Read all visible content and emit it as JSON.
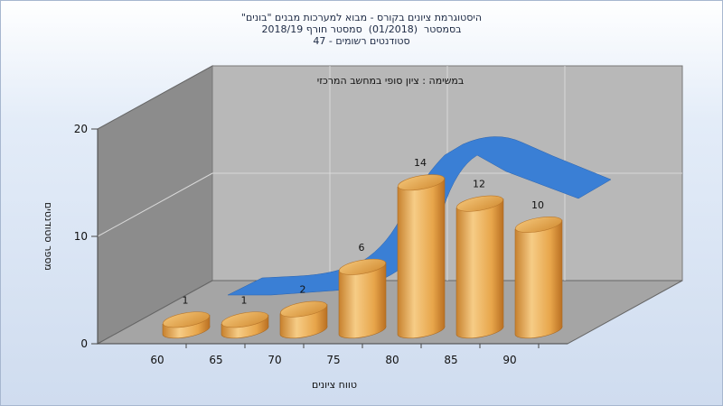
{
  "title": {
    "line1": "היסטוגרמת ציונים בקורס - מבוא למערכות מבנים \"בונים\"",
    "line2": "בסמסטר  (01/2018)  סמסטר חורף 2018/19",
    "line3": "סטודנטים רשומים - 47"
  },
  "chart_data": {
    "type": "bar",
    "title": "היסטוגרמת ציונים בקורס - מבוא למערכות מבנים \"בונים\"",
    "annotation": "במשימה : ציון סופי במחשב המרכזי",
    "categories": [
      "60",
      "65",
      "70",
      "75",
      "80",
      "85",
      "90"
    ],
    "x_ticks": [
      "60",
      "65",
      "70",
      "75",
      "80",
      "85",
      "90"
    ],
    "series": [
      {
        "values": [
          1,
          1,
          2,
          6,
          14,
          12,
          10
        ]
      }
    ],
    "trend": {
      "type": "area-ribbon",
      "color": "#3a7fd5"
    },
    "y_ticks": [
      "0",
      "10",
      "20"
    ],
    "ylim": [
      0,
      20
    ],
    "xlabel": "טווח ציונים",
    "ylabel": "מספר סטודנטים",
    "grid": true,
    "bar_color": "#e7a54a",
    "wall_color": "#b7b7b7",
    "side_wall_color": "#8c8c8c",
    "floor_color": "#a4a4a4"
  }
}
